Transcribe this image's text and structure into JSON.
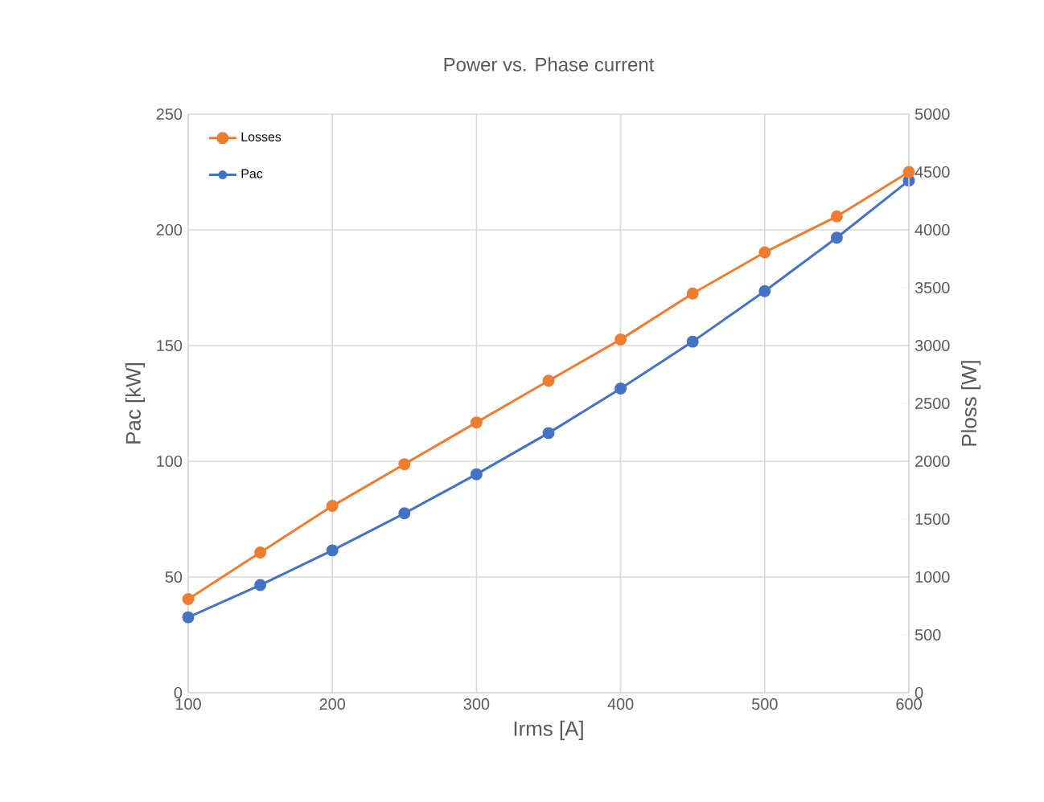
{
  "chart_data": {
    "type": "line",
    "title": "Power vs. Phase current",
    "xlabel": "Irms [A]",
    "ylabel": "Pac [kW]",
    "y2label": "Ploss [W]",
    "x": [
      100,
      150,
      200,
      250,
      300,
      350,
      400,
      450,
      500,
      550,
      600
    ],
    "series": [
      {
        "name": "Losses",
        "color": "#ed7d31",
        "axis": "y2",
        "values": [
          809,
          1212,
          1614,
          1975,
          2336,
          2696,
          3053,
          3450,
          3806,
          4116,
          4500
        ]
      },
      {
        "name": "Pac",
        "color": "#4472c4",
        "values": [
          32.6,
          46.5,
          61.5,
          77.5,
          94.4,
          112.2,
          131.4,
          151.7,
          173.5,
          196.6,
          221.3
        ]
      }
    ],
    "xlim": [
      100,
      600
    ],
    "xticks": [
      100,
      200,
      300,
      400,
      500,
      600
    ],
    "ylim": [
      0,
      250
    ],
    "yticks": [
      0,
      50,
      100,
      150,
      200,
      250
    ],
    "y2lim": [
      0,
      5000
    ],
    "y2ticks": [
      0,
      500,
      1000,
      1500,
      2000,
      2500,
      3000,
      3500,
      4000,
      4500,
      5000
    ],
    "grid": true,
    "legend": "top left",
    "marker": "circle",
    "line_style": "solid"
  }
}
